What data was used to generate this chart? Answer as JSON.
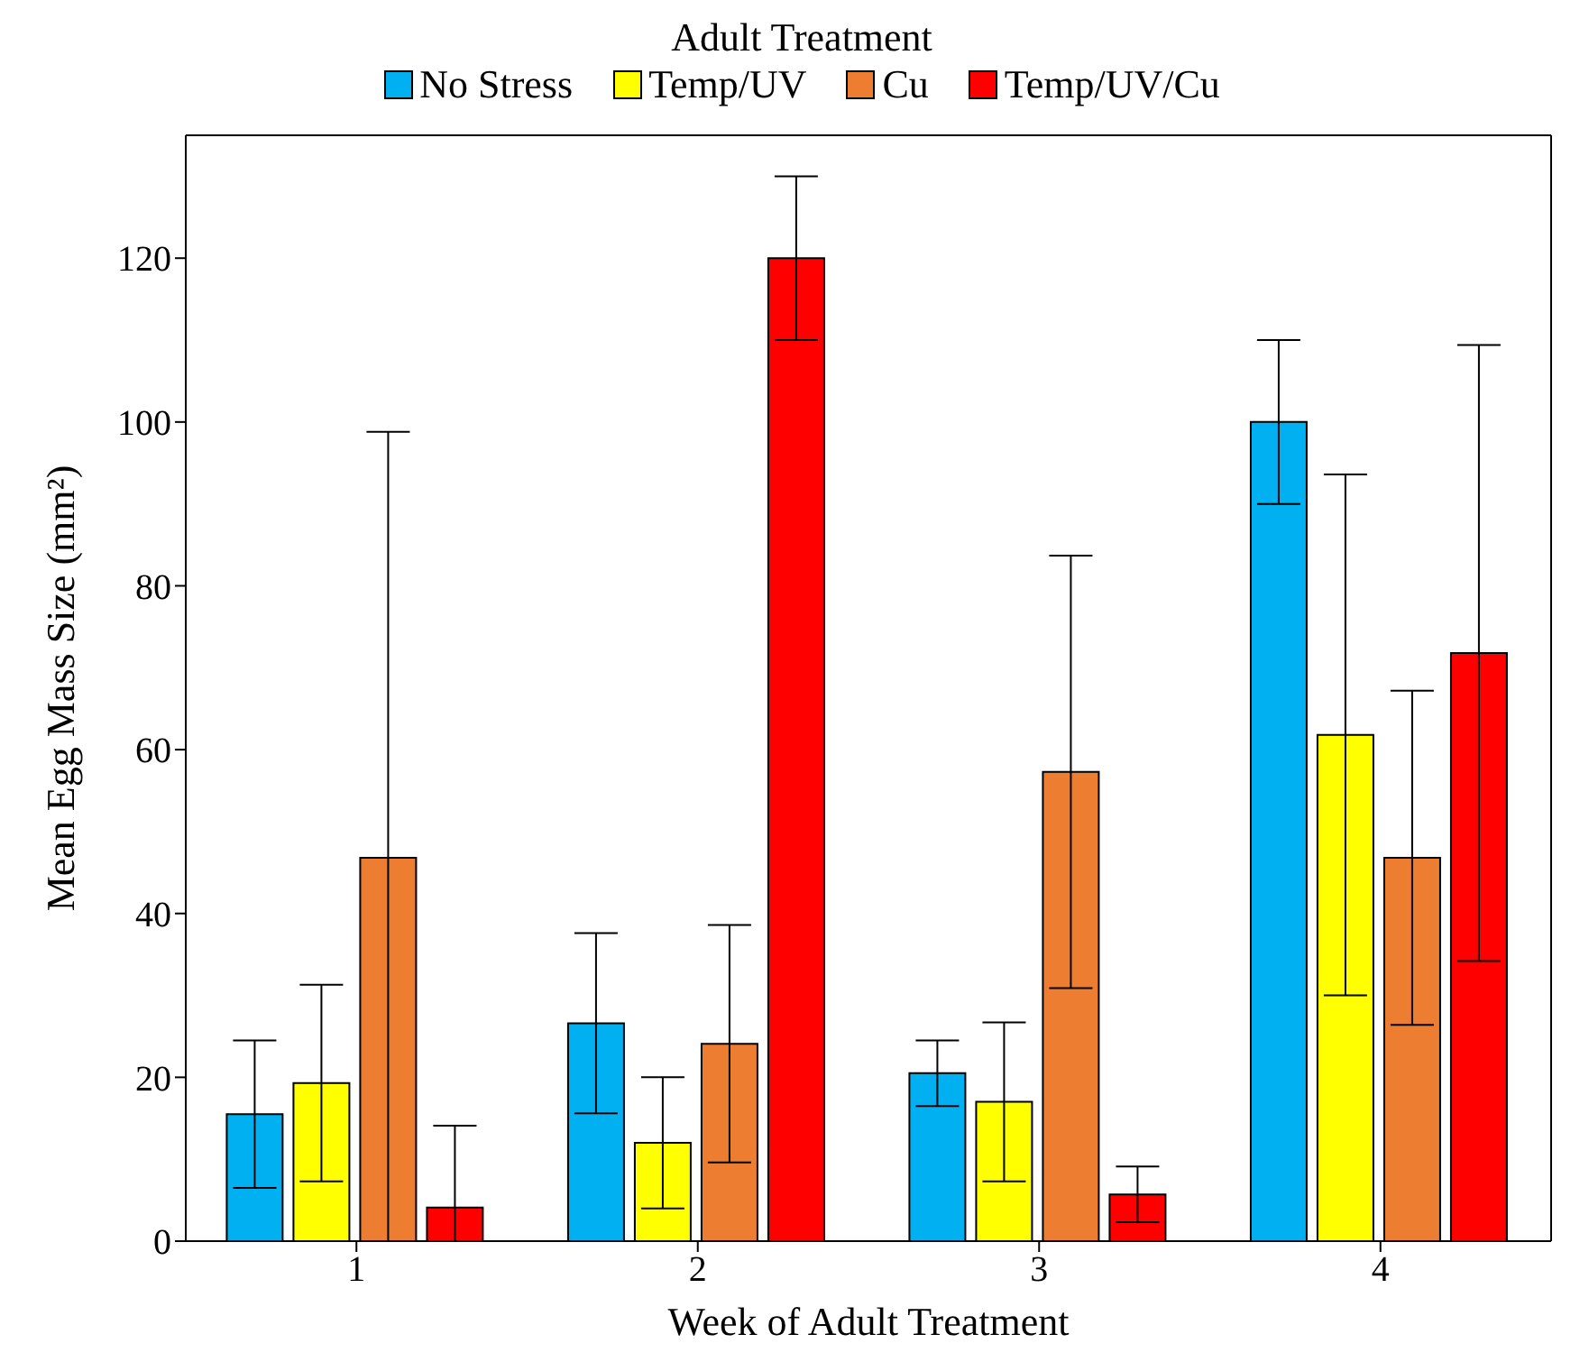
{
  "chart_data": {
    "type": "bar",
    "legend_title": "Adult Treatment",
    "xlabel": "Week of Adult Treatment",
    "ylabel": "Mean Egg Mass Size (mm²)",
    "categories": [
      "1",
      "2",
      "3",
      "4"
    ],
    "series": [
      {
        "name": "No Stress",
        "color": "#00b0f0",
        "values": [
          15.5,
          26.6,
          20.5,
          100
        ],
        "errors": [
          9,
          11,
          4,
          10
        ]
      },
      {
        "name": "Temp/UV",
        "color": "#ffff00",
        "values": [
          19.3,
          12,
          17,
          61.8
        ],
        "errors": [
          12,
          8,
          9.7,
          31.8
        ]
      },
      {
        "name": "Cu",
        "color": "#ed7d31",
        "values": [
          46.8,
          24.1,
          57.3,
          46.8
        ],
        "errors": [
          [
            0,
            98.8
          ],
          14.5,
          26.4,
          20.4
        ]
      },
      {
        "name": "Temp/UV/Cu",
        "color": "#ff0000",
        "values": [
          4.1,
          120,
          5.7,
          71.8
        ],
        "errors": [
          [
            0,
            14.1
          ],
          10,
          3.4,
          37.6
        ]
      }
    ],
    "ylim": [
      0,
      135
    ],
    "yticks": [
      0,
      20,
      40,
      60,
      80,
      100,
      120
    ],
    "legend": "top"
  }
}
